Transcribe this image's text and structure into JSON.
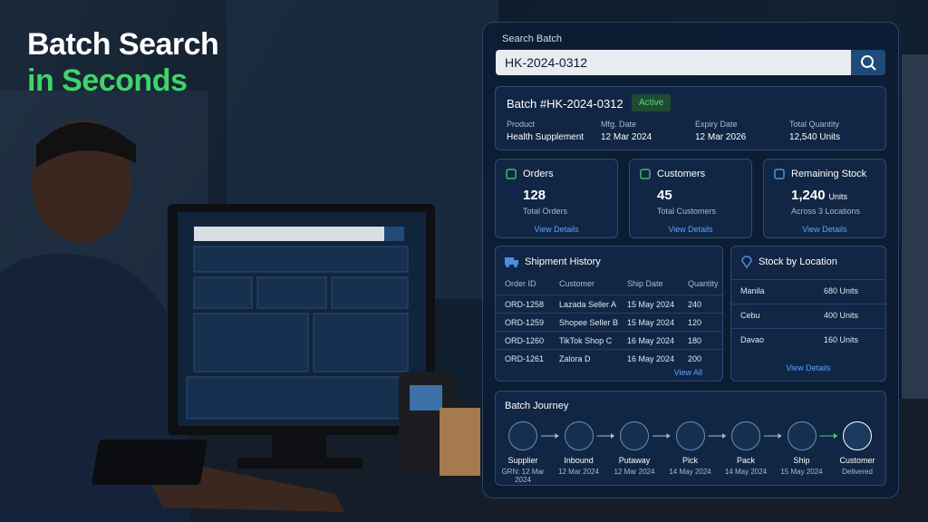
{
  "headline": {
    "line1": "Batch Search",
    "line2": "in Seconds"
  },
  "search": {
    "label": "Search Batch",
    "query": "HK-2024-0312"
  },
  "batch": {
    "title": "Batch #HK-2024-0312",
    "status": "Active",
    "fields": [
      {
        "label": "Product",
        "value": "Health Supplement"
      },
      {
        "label": "Mfg. Date",
        "value": "12 Mar 2024"
      },
      {
        "label": "Expiry Date",
        "value": "12 Mar 2026"
      },
      {
        "label": "Total Quantity",
        "value": "12,540 Units"
      }
    ]
  },
  "cards": [
    {
      "title": "Orders",
      "value": "128",
      "sub": "Total Orders",
      "link": "View Details"
    },
    {
      "title": "Customers",
      "value": "45",
      "sub": "Total Customers",
      "link": "View Details"
    },
    {
      "title": "Remaining Stock",
      "value": "1,240",
      "unit": "Units",
      "sub": "Across 3 Locations",
      "link": "View Details"
    }
  ],
  "shipment": {
    "title": "Shipment History",
    "columns": [
      "Order ID",
      "Customer",
      "Ship Date",
      "Quantity"
    ],
    "rows": [
      [
        "ORD-1258",
        "Lazada Seller A",
        "15 May 2024",
        "240"
      ],
      [
        "ORD-1259",
        "Shopee Seller B",
        "15 May 2024",
        "120"
      ],
      [
        "ORD-1260",
        "TikTok Shop C",
        "16 May 2024",
        "180"
      ],
      [
        "ORD-1261",
        "Zalora D",
        "16 May 2024",
        "200"
      ]
    ],
    "link": "View All"
  },
  "stock": {
    "title": "Stock by Location",
    "rows": [
      [
        "Manila",
        "680 Units"
      ],
      [
        "Cebu",
        "400 Units"
      ],
      [
        "Davao",
        "160 Units"
      ]
    ],
    "link": "View Details"
  },
  "journey": {
    "title": "Batch Journey",
    "steps": [
      {
        "name": "Supplier",
        "detail": "GRN: 12 Mar 2024"
      },
      {
        "name": "Inbound",
        "detail": "12 Mar 2024"
      },
      {
        "name": "Putaway",
        "detail": "12 Mar 2024"
      },
      {
        "name": "Pick",
        "detail": "14 May 2024"
      },
      {
        "name": "Pack",
        "detail": "14 May 2024"
      },
      {
        "name": "Ship",
        "detail": "15 May 2024"
      },
      {
        "name": "Customer",
        "detail": "Delivered"
      }
    ]
  }
}
